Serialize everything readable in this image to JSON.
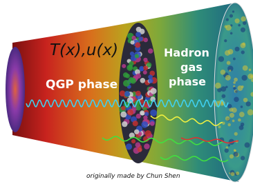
{
  "labels": {
    "fields": "T(x),u(x)",
    "qgp": "QGP phase",
    "hadron": [
      "Hadron",
      "gas",
      "phase"
    ],
    "credit": "originally made by Chun Shen"
  }
}
